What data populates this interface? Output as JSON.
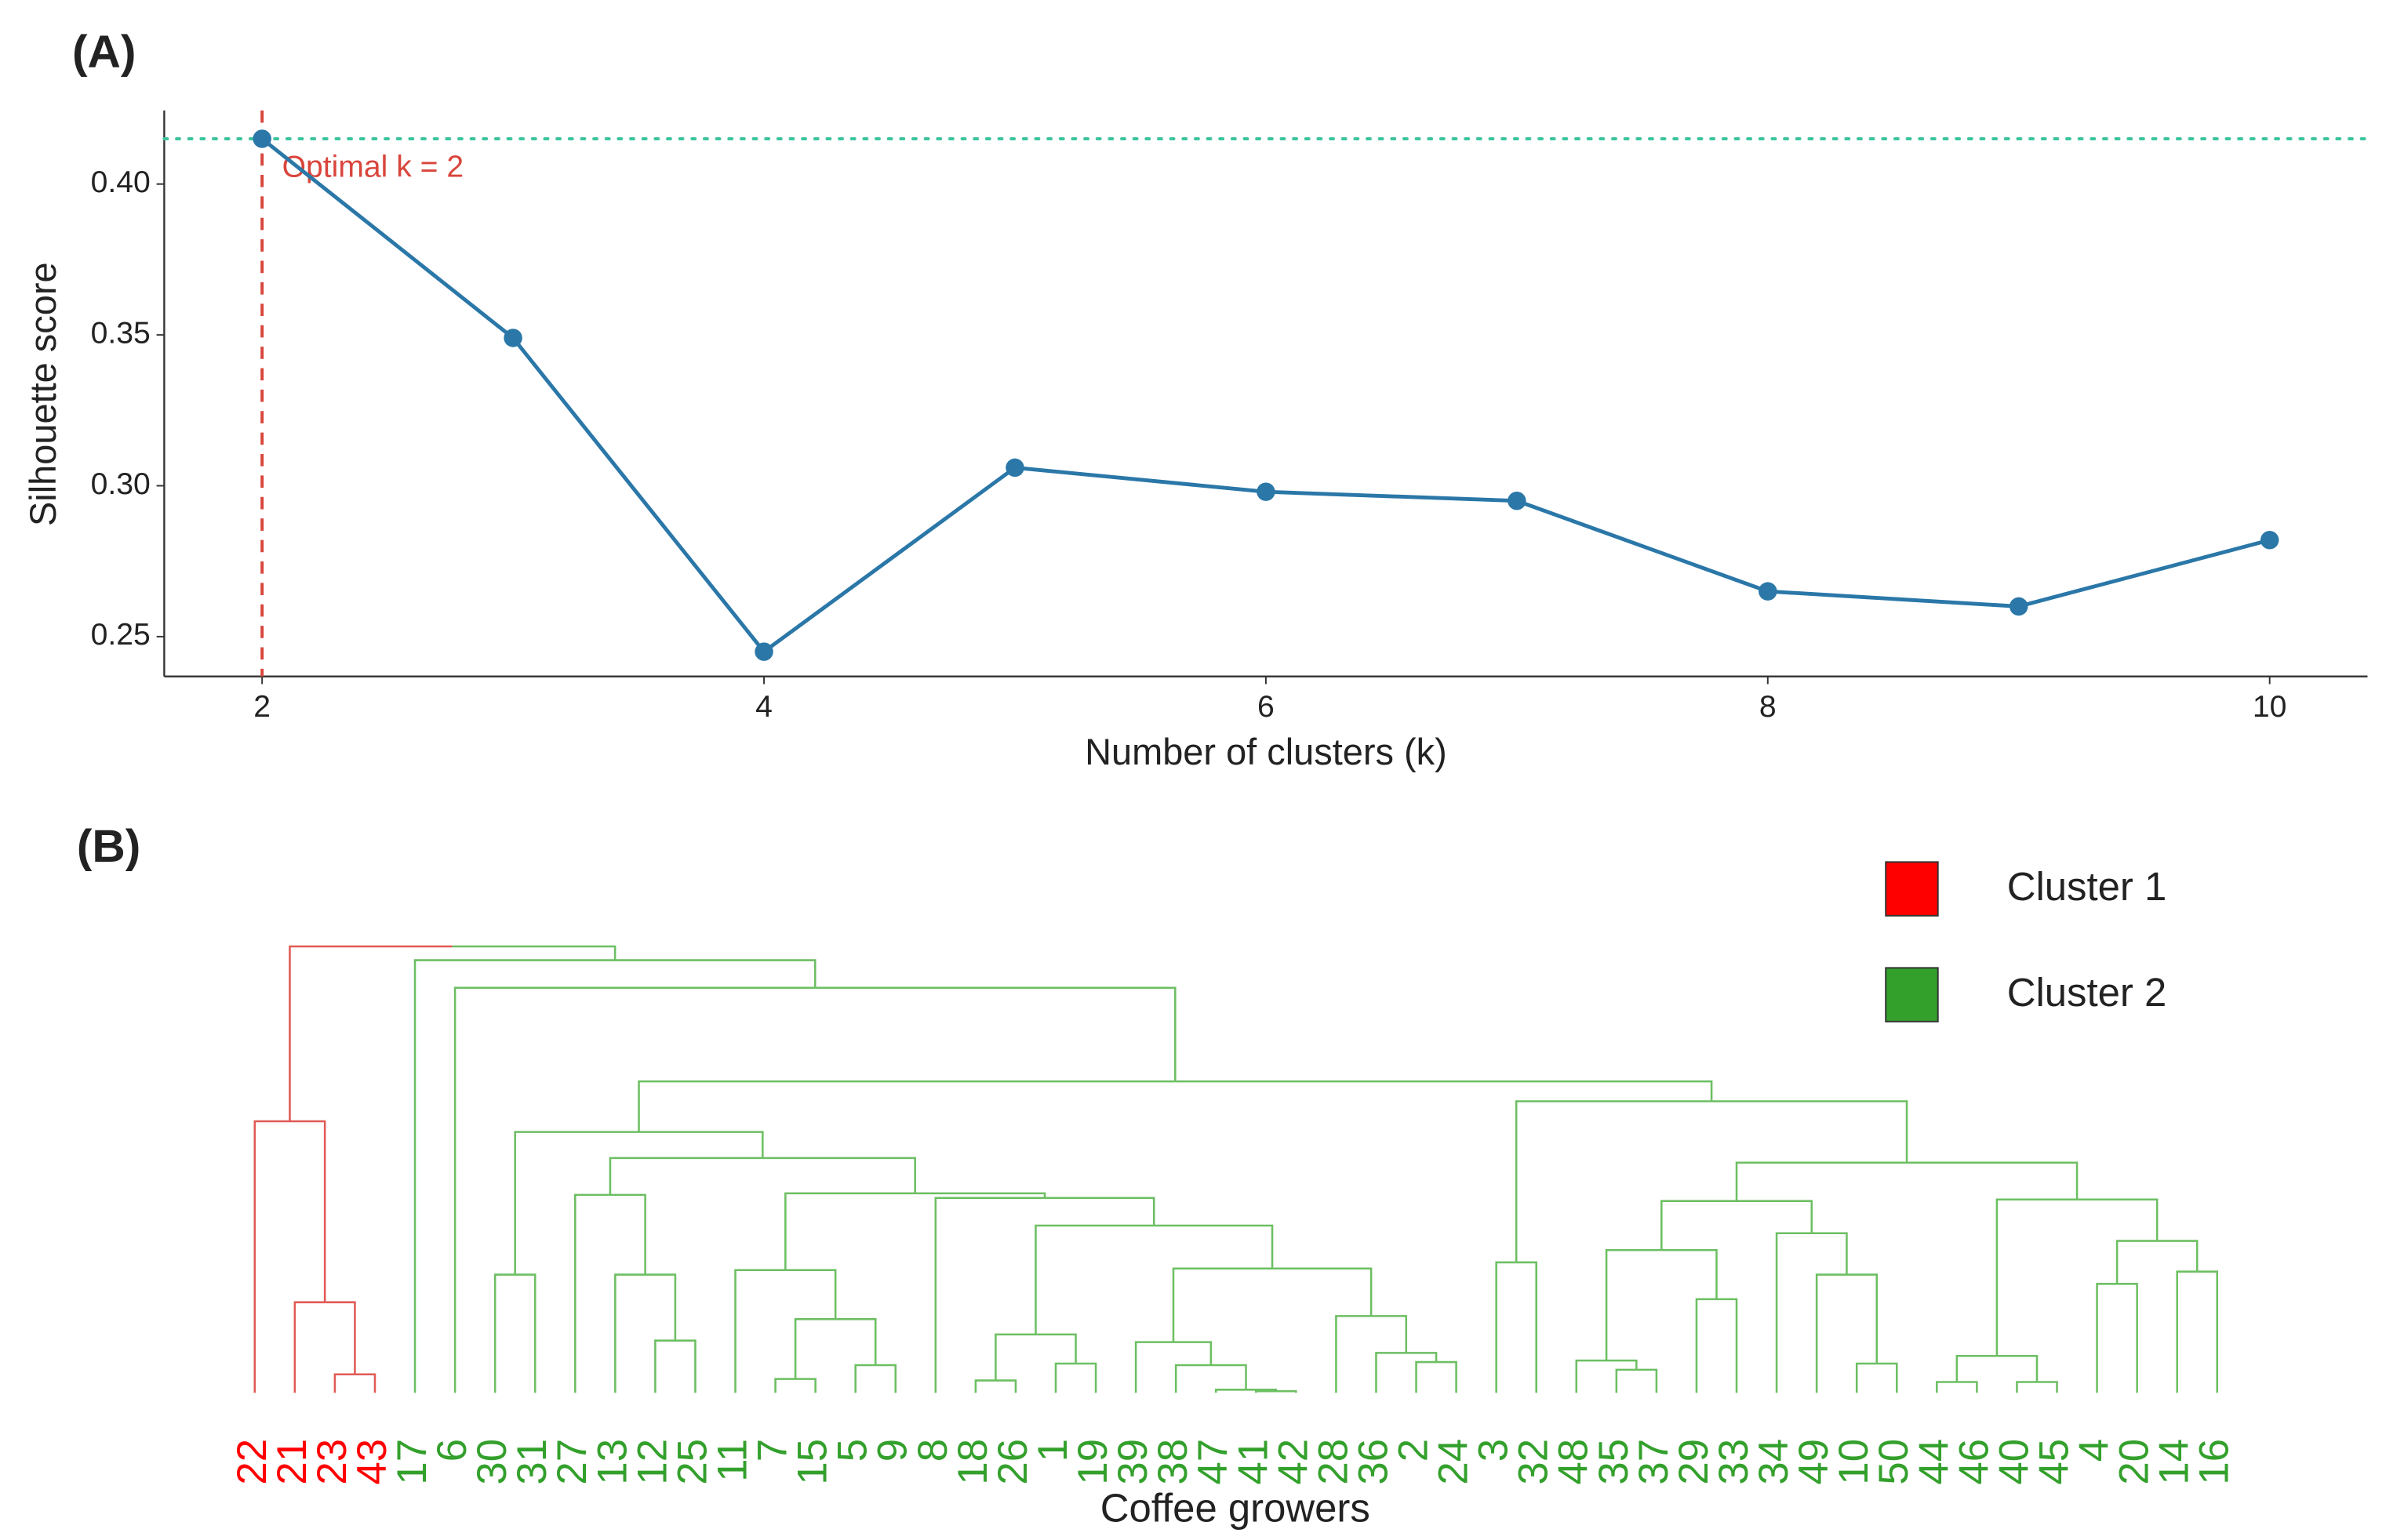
{
  "chart_data": [
    {
      "type": "line",
      "title": "(A)",
      "x_label": "Number of clusters (k)",
      "y_label": "Silhouette score",
      "x": [
        2,
        3,
        4,
        5,
        6,
        7,
        8,
        9,
        10
      ],
      "series": [
        {
          "name": "Silhouette score",
          "color": "#2a77a8",
          "values": [
            0.415,
            0.349,
            0.245,
            0.306,
            0.298,
            0.295,
            0.265,
            0.26,
            0.282
          ]
        }
      ],
      "xlim": [
        1.61,
        10.39
      ],
      "ylim": [
        0.2368,
        0.4244
      ],
      "xticks": [
        2,
        4,
        6,
        8,
        10
      ],
      "yticks": [
        0.25,
        {
          "value": 0.3,
          "label": "0.30"
        },
        0.35,
        {
          "value": 0.4,
          "label": "0.40"
        }
      ],
      "vline": {
        "value": 2,
        "color": "#d9453c"
      },
      "hline": {
        "value": 0.415,
        "color": "#3cc49f"
      },
      "annotation": "Optimal k = 2"
    },
    {
      "type": "dendrogram",
      "title": "(B)",
      "x_label": "Coffee growers",
      "clusters": [
        {
          "name": "Cluster 1",
          "color": "#ff0000"
        },
        {
          "name": "Cluster 2",
          "color": "#33a02c"
        }
      ],
      "leaves": [
        {
          "label": "22",
          "cluster": 0
        },
        {
          "label": "21",
          "cluster": 0
        },
        {
          "label": "23",
          "cluster": 0
        },
        {
          "label": "43",
          "cluster": 0
        },
        {
          "label": "17",
          "cluster": 1
        },
        {
          "label": "6",
          "cluster": 1
        },
        {
          "label": "30",
          "cluster": 1
        },
        {
          "label": "31",
          "cluster": 1
        },
        {
          "label": "27",
          "cluster": 1
        },
        {
          "label": "13",
          "cluster": 1
        },
        {
          "label": "12",
          "cluster": 1
        },
        {
          "label": "25",
          "cluster": 1
        },
        {
          "label": "11",
          "cluster": 1
        },
        {
          "label": "7",
          "cluster": 1
        },
        {
          "label": "15",
          "cluster": 1
        },
        {
          "label": "5",
          "cluster": 1
        },
        {
          "label": "9",
          "cluster": 1
        },
        {
          "label": "8",
          "cluster": 1
        },
        {
          "label": "18",
          "cluster": 1
        },
        {
          "label": "26",
          "cluster": 1
        },
        {
          "label": "1",
          "cluster": 1
        },
        {
          "label": "19",
          "cluster": 1
        },
        {
          "label": "39",
          "cluster": 1
        },
        {
          "label": "38",
          "cluster": 1
        },
        {
          "label": "47",
          "cluster": 1
        },
        {
          "label": "41",
          "cluster": 1
        },
        {
          "label": "42",
          "cluster": 1
        },
        {
          "label": "28",
          "cluster": 1
        },
        {
          "label": "36",
          "cluster": 1
        },
        {
          "label": "2",
          "cluster": 1
        },
        {
          "label": "24",
          "cluster": 1
        },
        {
          "label": "3",
          "cluster": 1
        },
        {
          "label": "32",
          "cluster": 1
        },
        {
          "label": "48",
          "cluster": 1
        },
        {
          "label": "35",
          "cluster": 1
        },
        {
          "label": "37",
          "cluster": 1
        },
        {
          "label": "29",
          "cluster": 1
        },
        {
          "label": "33",
          "cluster": 1
        },
        {
          "label": "34",
          "cluster": 1
        },
        {
          "label": "49",
          "cluster": 1
        },
        {
          "label": "10",
          "cluster": 1
        },
        {
          "label": "50",
          "cluster": 1
        },
        {
          "label": "44",
          "cluster": 1
        },
        {
          "label": "46",
          "cluster": 1
        },
        {
          "label": "40",
          "cluster": 1
        },
        {
          "label": "45",
          "cluster": 1
        },
        {
          "label": "4",
          "cluster": 1
        },
        {
          "label": "20",
          "cluster": 1
        },
        {
          "label": "14",
          "cluster": 1
        },
        {
          "label": "16",
          "cluster": 1
        }
      ],
      "merges": [
        [
          2,
          3,
          12
        ],
        [
          1,
          50,
          59
        ],
        [
          0,
          51,
          177
        ],
        [
          6,
          7,
          77
        ],
        [
          10,
          11,
          34
        ],
        [
          9,
          54,
          77
        ],
        [
          8,
          55,
          129
        ],
        [
          13,
          14,
          9
        ],
        [
          15,
          16,
          18
        ],
        [
          57,
          58,
          48
        ],
        [
          12,
          59,
          80
        ],
        [
          18,
          19,
          8
        ],
        [
          20,
          21,
          19
        ],
        [
          61,
          62,
          38
        ],
        [
          25,
          26,
          1
        ],
        [
          24,
          64,
          2
        ],
        [
          23,
          65,
          18
        ],
        [
          22,
          66,
          33
        ],
        [
          29,
          30,
          20
        ],
        [
          28,
          68,
          26
        ],
        [
          27,
          69,
          50
        ],
        [
          67,
          70,
          81
        ],
        [
          63,
          71,
          109
        ],
        [
          17,
          72,
          127
        ],
        [
          60,
          73,
          130
        ],
        [
          56,
          74,
          153
        ],
        [
          53,
          75,
          170
        ],
        [
          31,
          32,
          85
        ],
        [
          34,
          35,
          15
        ],
        [
          33,
          78,
          21
        ],
        [
          36,
          37,
          61
        ],
        [
          79,
          80,
          93
        ],
        [
          40,
          41,
          19
        ],
        [
          39,
          82,
          77
        ],
        [
          38,
          83,
          104
        ],
        [
          81,
          84,
          125
        ],
        [
          42,
          43,
          7
        ],
        [
          44,
          45,
          7
        ],
        [
          86,
          87,
          24
        ],
        [
          46,
          47,
          71
        ],
        [
          48,
          49,
          79
        ],
        [
          89,
          90,
          99
        ],
        [
          88,
          91,
          126
        ],
        [
          85,
          92,
          150
        ],
        [
          77,
          93,
          190
        ],
        [
          76,
          94,
          203
        ],
        [
          5,
          95,
          264
        ],
        [
          4,
          96,
          282
        ],
        [
          52,
          97,
          291
        ]
      ]
    }
  ]
}
